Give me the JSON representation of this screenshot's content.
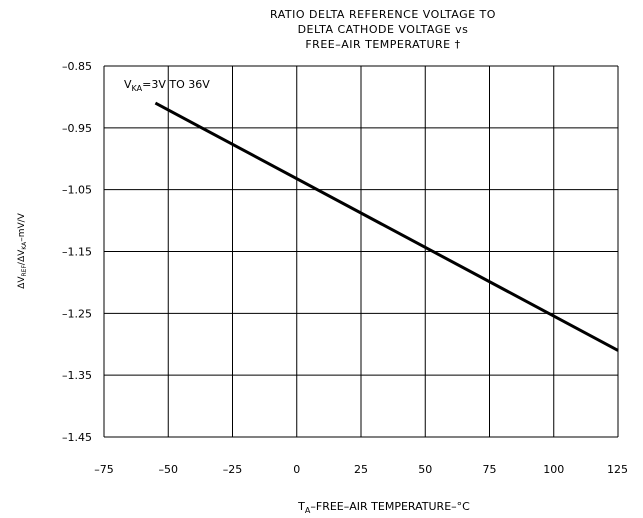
{
  "chart_data": {
    "type": "line",
    "title_lines": [
      "RATIO DELTA REFERENCE VOLTAGE TO",
      "DELTA CATHODE VOLTAGE vs",
      "FREE–AIR TEMPERATURE †"
    ],
    "annotation": {
      "main": "V",
      "sub": "KA",
      "rest": "=3V TO 36V"
    },
    "xlabel": {
      "main": "T",
      "sub": "A",
      "rest": "–FREE–AIR TEMPERATURE–°C"
    },
    "ylabel": {
      "p1": "ΔV",
      "s1": "REF",
      "p2": "/ΔV",
      "s2": "KA",
      "p3": "–mV/V"
    },
    "x_ticks": [
      "–75",
      "–50",
      "–25",
      "0",
      "25",
      "50",
      "75",
      "100",
      "125"
    ],
    "y_ticks": [
      "–0.85",
      "–0.95",
      "–1.05",
      "–1.15",
      "–1.25",
      "–1.35",
      "–1.45"
    ],
    "x_tick_values": [
      -75,
      -50,
      -25,
      0,
      25,
      50,
      75,
      100,
      125
    ],
    "y_tick_values": [
      -0.85,
      -0.95,
      -1.05,
      -1.15,
      -1.25,
      -1.35,
      -1.45
    ],
    "xlim": [
      -75,
      125
    ],
    "ylim": [
      -1.45,
      -0.85
    ],
    "grid": true,
    "series": [
      {
        "x": [
          -55,
          125
        ],
        "y": [
          -0.91,
          -1.31
        ],
        "color": "#000000"
      }
    ]
  }
}
